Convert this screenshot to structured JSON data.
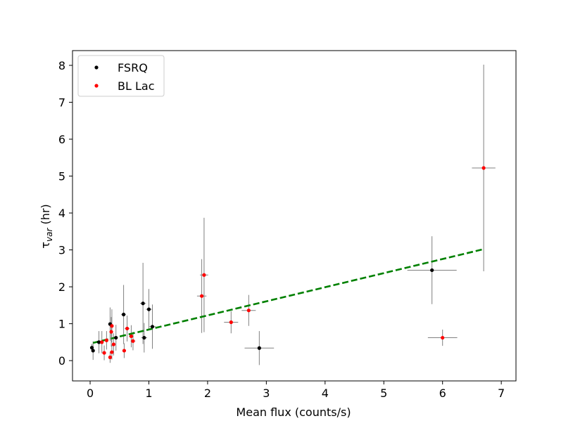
{
  "chart_data": {
    "type": "scatter",
    "title": "",
    "xlabel": "Mean flux (counts/s)",
    "ylabel_main": "τ",
    "ylabel_sub": "var",
    "ylabel_unit": " (hr)",
    "xlim": [
      -0.3,
      7.25
    ],
    "ylim": [
      -0.55,
      8.4
    ],
    "xticks": [
      0,
      1,
      2,
      3,
      4,
      5,
      6,
      7
    ],
    "yticks": [
      0,
      1,
      2,
      3,
      4,
      5,
      6,
      7,
      8
    ],
    "grid": false,
    "legend_position": "top-left",
    "series": [
      {
        "name": "FSRQ",
        "color": "#000000",
        "points": [
          {
            "x": 0.03,
            "y": 0.35,
            "xerr": 0.01,
            "yerr": 0.1
          },
          {
            "x": 0.05,
            "y": 0.27,
            "xerr": 0.01,
            "yerr": 0.25
          },
          {
            "x": 0.15,
            "y": 0.5,
            "xerr": 0.02,
            "yerr": 0.3
          },
          {
            "x": 0.34,
            "y": 0.99,
            "xerr": 0.03,
            "yerr": 0.45
          },
          {
            "x": 0.44,
            "y": 0.62,
            "xerr": 0.03,
            "yerr": 0.35
          },
          {
            "x": 0.57,
            "y": 1.25,
            "xerr": 0.04,
            "yerr": 0.8
          },
          {
            "x": 0.9,
            "y": 1.55,
            "xerr": 0.05,
            "yerr": 1.1
          },
          {
            "x": 0.92,
            "y": 0.62,
            "xerr": 0.05,
            "yerr": 0.4
          },
          {
            "x": 1.0,
            "y": 1.39,
            "xerr": 0.05,
            "yerr": 0.55
          },
          {
            "x": 1.06,
            "y": 0.92,
            "xerr": 0.06,
            "yerr": 0.6
          },
          {
            "x": 2.88,
            "y": 0.34,
            "xerr": 0.25,
            "yerr": 0.46
          },
          {
            "x": 5.82,
            "y": 2.45,
            "xerr": 0.42,
            "yerr": 0.92
          }
        ]
      },
      {
        "name": "BL Lac",
        "color": "#ff0000",
        "points": [
          {
            "x": 0.2,
            "y": 0.5,
            "xerr": 0.02,
            "yerr": 0.3
          },
          {
            "x": 0.24,
            "y": 0.21,
            "xerr": 0.02,
            "yerr": 0.2
          },
          {
            "x": 0.28,
            "y": 0.55,
            "xerr": 0.02,
            "yerr": 0.25
          },
          {
            "x": 0.34,
            "y": 0.09,
            "xerr": 0.02,
            "yerr": 0.15
          },
          {
            "x": 0.36,
            "y": 0.78,
            "xerr": 0.03,
            "yerr": 0.4
          },
          {
            "x": 0.37,
            "y": 0.94,
            "xerr": 0.03,
            "yerr": 0.45
          },
          {
            "x": 0.37,
            "y": 0.23,
            "xerr": 0.03,
            "yerr": 0.2
          },
          {
            "x": 0.4,
            "y": 0.44,
            "xerr": 0.03,
            "yerr": 0.3
          },
          {
            "x": 0.58,
            "y": 0.27,
            "xerr": 0.03,
            "yerr": 0.2
          },
          {
            "x": 0.63,
            "y": 0.87,
            "xerr": 0.04,
            "yerr": 0.35
          },
          {
            "x": 0.7,
            "y": 0.66,
            "xerr": 0.04,
            "yerr": 0.3
          },
          {
            "x": 0.73,
            "y": 0.53,
            "xerr": 0.04,
            "yerr": 0.25
          },
          {
            "x": 1.9,
            "y": 1.75,
            "xerr": 0.08,
            "yerr": 1.0
          },
          {
            "x": 1.94,
            "y": 2.32,
            "xerr": 0.07,
            "yerr": 1.55
          },
          {
            "x": 2.4,
            "y": 1.04,
            "xerr": 0.12,
            "yerr": 0.3
          },
          {
            "x": 2.7,
            "y": 1.36,
            "xerr": 0.12,
            "yerr": 0.42
          },
          {
            "x": 6.0,
            "y": 0.62,
            "xerr": 0.25,
            "yerr": 0.22
          },
          {
            "x": 6.7,
            "y": 5.22,
            "xerr": 0.2,
            "yerr": 2.8
          }
        ]
      }
    ],
    "fit_line": {
      "color": "#008000",
      "style": "dashed",
      "x": [
        0.05,
        6.7
      ],
      "y": [
        0.48,
        3.02
      ]
    }
  }
}
